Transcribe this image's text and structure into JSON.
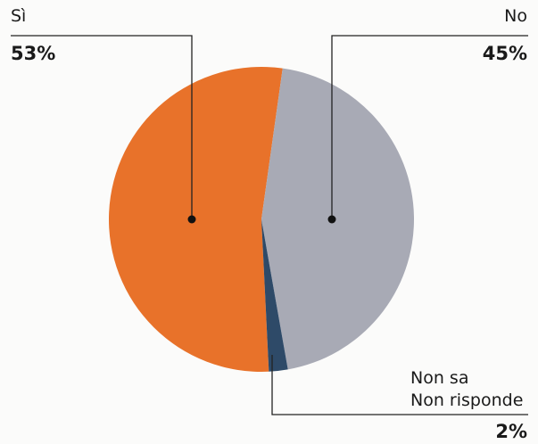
{
  "chart_data": {
    "type": "pie",
    "categories": [
      "Sì",
      "No",
      "Non sa\nNon risponde"
    ],
    "values": [
      53,
      45,
      2
    ],
    "value_labels": [
      "53%",
      "45%",
      "2%"
    ],
    "colors": [
      "#e8722a",
      "#a8aab5",
      "#2e4a68"
    ]
  }
}
